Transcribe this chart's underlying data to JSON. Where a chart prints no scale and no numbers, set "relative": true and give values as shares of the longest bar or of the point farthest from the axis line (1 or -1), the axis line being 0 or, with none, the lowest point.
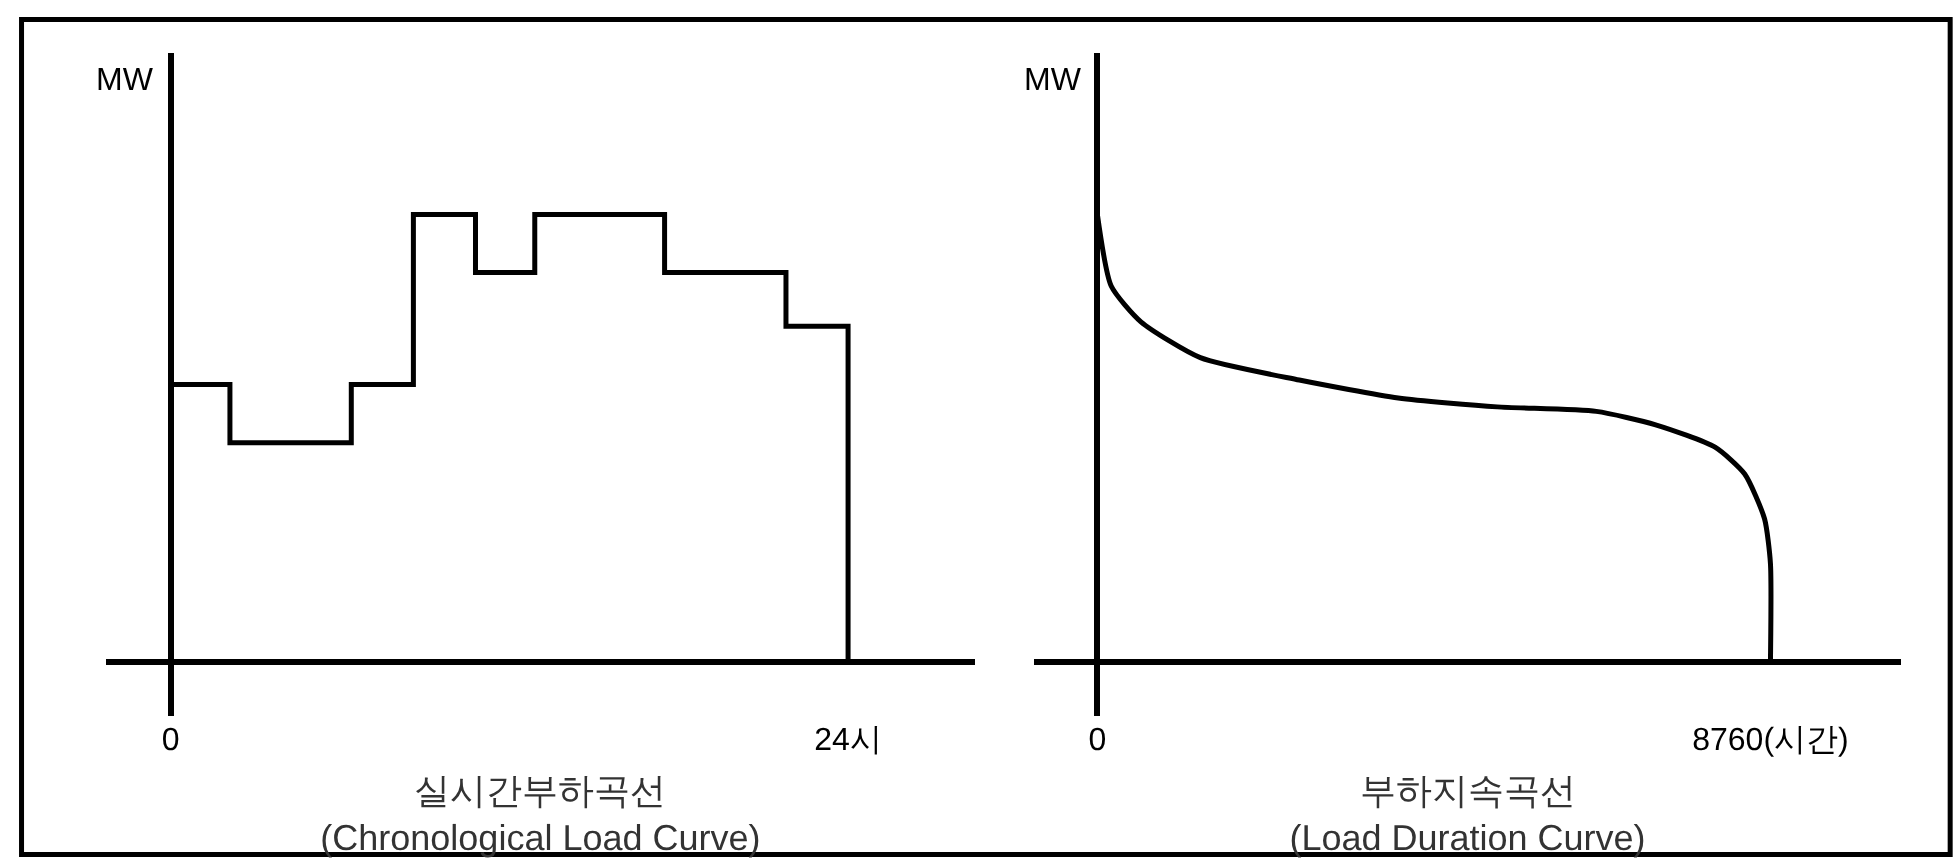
{
  "chart_data": [
    {
      "type": "step",
      "relative": true,
      "ylabel": "MW",
      "xlabel": "실시간부하곡선\n(Chronological Load Curve)",
      "color": "#000000",
      "xlim": [
        -2.3,
        28.5
      ],
      "xticks": [
        0,
        {
          "value": 24,
          "label": "24시"
        }
      ],
      "x": [
        0,
        2.1,
        6.4,
        8.6,
        10.8,
        12.9,
        17.5,
        21.8,
        24
      ],
      "values": [
        0.62,
        0.49,
        0.62,
        1,
        0.87,
        1,
        0.87,
        0.75,
        0
      ]
    },
    {
      "type": "line",
      "relative": true,
      "ylabel": "MW",
      "xlabel": "부하지속곡선\n(Load Duration Curve)",
      "color": "#000000",
      "xlim": [
        -827,
        10462
      ],
      "xticks": [
        0,
        {
          "value": 8760,
          "label": "8760(시간)"
        }
      ],
      "x": [
        0,
        180,
        567,
        1340,
        2628,
        3916,
        5204,
        6493,
        7266,
        8039,
        8425,
        8683,
        8760,
        8760
      ],
      "values": [
        1,
        0.84,
        0.76,
        0.68,
        0.63,
        0.59,
        0.57,
        0.56,
        0.53,
        0.48,
        0.42,
        0.32,
        0.22,
        0
      ]
    }
  ]
}
